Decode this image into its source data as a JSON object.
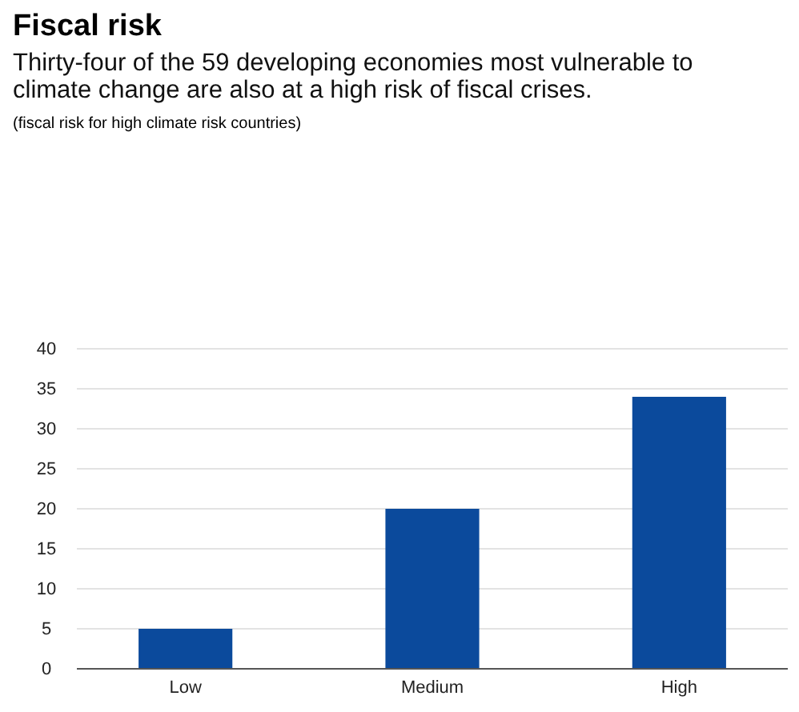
{
  "chart_data": {
    "type": "bar",
    "title": "Fiscal risk",
    "subtitle": "Thirty-four of the 59 developing economies most vulnerable to climate change are also at a high risk of fiscal crises.",
    "annotations": [
      "(fiscal risk for high climate risk countries)"
    ],
    "categories": [
      "Low",
      "Medium",
      "High"
    ],
    "values": [
      5,
      20,
      34
    ],
    "color": "#0b4a9c",
    "ylim": [
      0,
      40
    ],
    "yticks": [
      0,
      5,
      10,
      15,
      20,
      25,
      30,
      35,
      40
    ],
    "grid": "y"
  }
}
